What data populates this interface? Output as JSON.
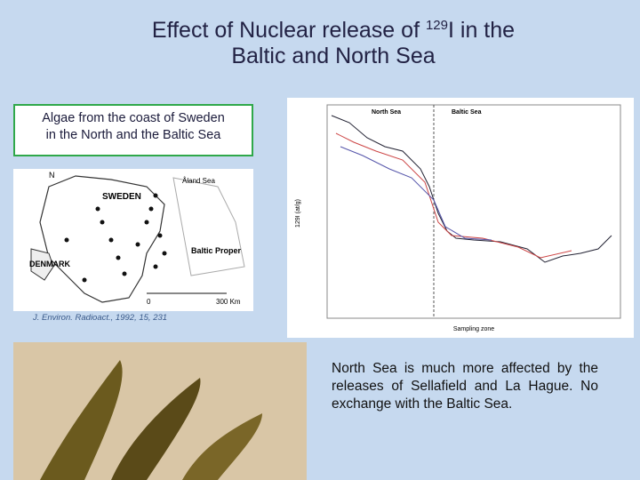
{
  "title": {
    "line1_pre": "Effect of Nuclear release of ",
    "isotope": "129",
    "line1_post": "I in the",
    "line2": "Baltic and North Sea"
  },
  "caption": [
    "Algae from the coast of Sweden",
    "in the North and the Baltic Sea"
  ],
  "map": {
    "north": "N",
    "sweden": "SWEDEN",
    "aland": "Åland Sea",
    "denmark": "DENMARK",
    "baltic": "Baltic Proper",
    "scale_start": "0",
    "scale_end": "300 Km"
  },
  "citation": "J. Environ. Radioact., 1992, 15, 231",
  "chart": {
    "north_sea": "North Sea",
    "baltic_sea": "Baltic Sea",
    "y_label": "129I (at/g)",
    "x_label": "Sampling zone"
  },
  "body": "North Sea is much more affected by the releases of Sellafield and La Hague.  No exchange with the Baltic Sea."
}
